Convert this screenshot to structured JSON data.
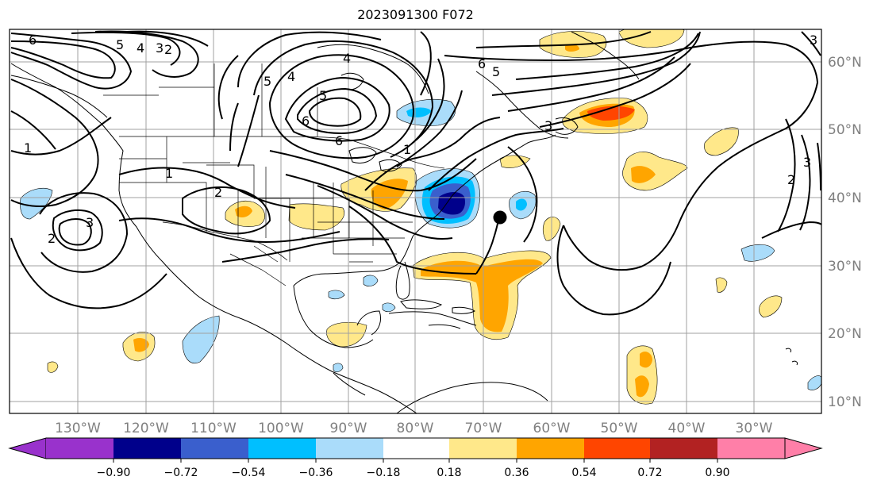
{
  "title": "2023091300 F072",
  "lat_labels": [
    "60°N",
    "50°N",
    "40°N",
    "30°N",
    "20°N",
    "10°N"
  ],
  "lon_labels": [
    "130°W",
    "120°W",
    "110°W",
    "100°W",
    "90°W",
    "80°W",
    "70°W",
    "60°W",
    "50°W",
    "40°W",
    "30°W"
  ],
  "contour_labels": [
    "6",
    "5",
    "4",
    "3",
    "2",
    "1",
    "4",
    "5",
    "6",
    "4",
    "5",
    "6",
    "3",
    "1",
    "2",
    "2",
    "3",
    "2",
    "3",
    "1",
    "6",
    "5",
    "3"
  ],
  "colorbar": {
    "ticks": [
      "−0.90",
      "−0.72",
      "−0.54",
      "−0.36",
      "−0.18",
      "0.18",
      "0.36",
      "0.54",
      "0.72",
      "0.90"
    ],
    "colors": [
      "#9932cc",
      "#00008b",
      "#3a5fcd",
      "#00bfff",
      "#aadcfa",
      "#ffffff",
      "#ffe88a",
      "#ffa500",
      "#ff4500",
      "#b22222",
      "#ff7fa8",
      "#ff7fa8"
    ],
    "extend": "both"
  },
  "storm_marker": {
    "lat": 37.0,
    "lon": -67.5,
    "icon": "black-dot-icon"
  }
}
